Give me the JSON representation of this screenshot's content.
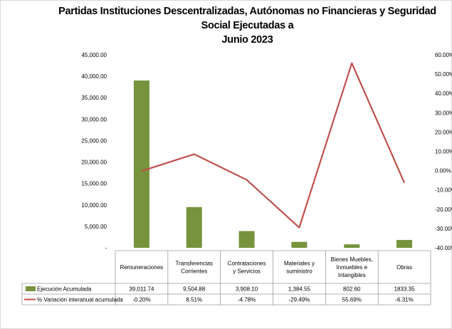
{
  "chart_data": {
    "type": "bar",
    "title_line1": "Partidas Instituciones Descentralizadas, Autónomas no Financieras y Seguridad Social  Ejecutadas a",
    "title_line2": "Junio 2023",
    "categories": [
      [
        "Remuneraciones"
      ],
      [
        "Transferencias",
        "Corrientes"
      ],
      [
        "Contrataciones",
        "y Servicios"
      ],
      [
        "Materiales y",
        "suministro"
      ],
      [
        "Bienes Muebles,",
        "Inmuebles e",
        "Intangibles"
      ],
      [
        "Obras"
      ]
    ],
    "series": [
      {
        "name": "Ejecución Acumulada",
        "type": "bar",
        "axis": "left",
        "color": "#77933c",
        "values": [
          39011.74,
          9504.88,
          3908.1,
          1384.55,
          802.6,
          1833.35
        ],
        "labels": [
          "39,011.74",
          "9,504.88",
          "3,908.10",
          "1,384.55",
          "802.60",
          "1833.35"
        ]
      },
      {
        "name": "% Variación interanual acumulada",
        "type": "line",
        "axis": "right",
        "color": "#c0504d",
        "values": [
          -0.2,
          8.51,
          -4.78,
          -29.49,
          55.69,
          -6.31
        ],
        "labels": [
          "-0.20%",
          "8.51%",
          "-4.78%",
          "-29.49%",
          "55.69%",
          "-6.31%"
        ]
      }
    ],
    "y_left": {
      "min": 0,
      "max": 45000,
      "step": 5000,
      "tick_labels": [
        "-",
        "5,000.00",
        "10,000.00",
        "15,000.00",
        "20,000.00",
        "25,000.00",
        "30,000.00",
        "35,000.00",
        "40,000.00",
        "45,000.00"
      ]
    },
    "y_right": {
      "min": -40,
      "max": 60,
      "step": 10,
      "tick_labels": [
        "-40.00%",
        "-30.00%",
        "-20.00%",
        "-10.00%",
        "0.00%",
        "10.00%",
        "20.00%",
        "30.00%",
        "40.00%",
        "50.00%",
        "60.00%"
      ]
    },
    "legend_placement": "data-table",
    "grid": false
  }
}
